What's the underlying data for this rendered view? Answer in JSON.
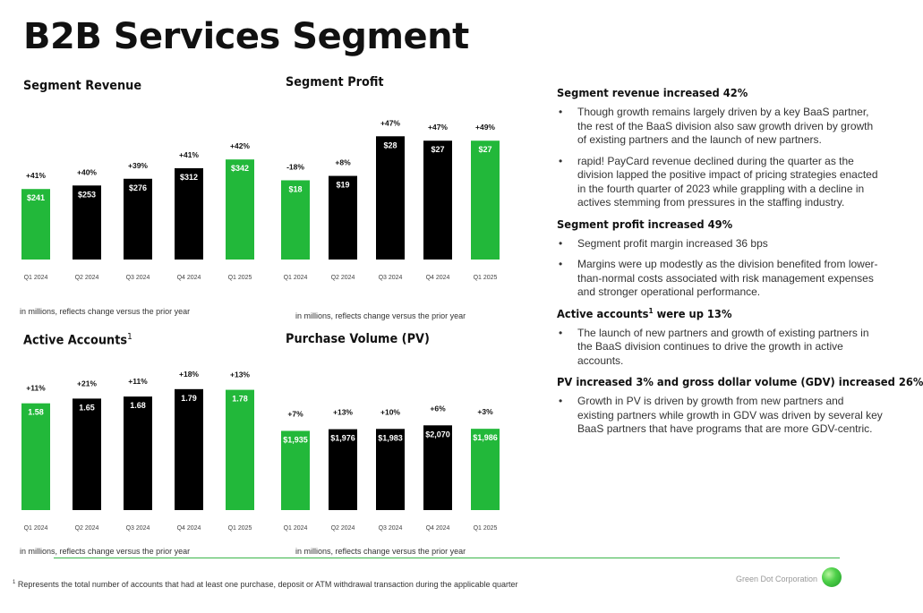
{
  "page": {
    "title": "B2B Services Segment",
    "accent_color": "#22b83a",
    "dark_color": "#000000"
  },
  "chart_data": [
    {
      "type": "bar",
      "title": "Segment Revenue",
      "categories": [
        "Q1 2024",
        "Q2 2024",
        "Q3 2024",
        "Q4 2024",
        "Q1 2025"
      ],
      "values": [
        241,
        253,
        276,
        312,
        342
      ],
      "value_labels": [
        "$241",
        "$253",
        "$276",
        "$312",
        "$342"
      ],
      "change_labels": [
        "+41%",
        "+40%",
        "+39%",
        "+41%",
        "+42%"
      ],
      "bar_colors": [
        "#22b83a",
        "#000000",
        "#000000",
        "#000000",
        "#22b83a"
      ],
      "ylim": [
        0,
        520
      ],
      "note": "in millions, reflects change versus the prior year"
    },
    {
      "type": "bar",
      "title": "Segment Profit",
      "categories": [
        "Q1 2024",
        "Q2 2024",
        "Q3 2024",
        "Q4 2024",
        "Q1 2025"
      ],
      "values": [
        18,
        19,
        28,
        27,
        27
      ],
      "value_labels": [
        "$18",
        "$19",
        "$28",
        "$27",
        "$27"
      ],
      "change_labels": [
        "-18%",
        "+8%",
        "+47%",
        "+47%",
        "+49%"
      ],
      "bar_colors": [
        "#22b83a",
        "#000000",
        "#000000",
        "#000000",
        "#22b83a"
      ],
      "ylim": [
        0,
        30.5
      ],
      "note": "in millions, reflects change versus the prior year"
    },
    {
      "type": "bar",
      "title": "Active Accounts",
      "title_sup": "1",
      "categories": [
        "Q1 2024",
        "Q2 2024",
        "Q3 2024",
        "Q4 2024",
        "Q1 2025"
      ],
      "values": [
        1.58,
        1.65,
        1.68,
        1.79,
        1.78
      ],
      "value_labels": [
        "1.58",
        "1.65",
        "1.68",
        "1.79",
        "1.78"
      ],
      "change_labels": [
        "+11%",
        "+21%",
        "+11%",
        "+18%",
        "+13%"
      ],
      "bar_colors": [
        "#22b83a",
        "#000000",
        "#000000",
        "#000000",
        "#22b83a"
      ],
      "ylim": [
        0,
        1.96
      ],
      "note": "in millions, reflects change versus the prior year"
    },
    {
      "type": "bar",
      "title": "Purchase Volume (PV)",
      "categories": [
        "Q1 2024",
        "Q2 2024",
        "Q3 2024",
        "Q4 2024",
        "Q1 2025"
      ],
      "values": [
        1935,
        1976,
        1983,
        2070,
        1986
      ],
      "value_labels": [
        "$1,935",
        "$1,976",
        "$1,983",
        "$2,070",
        "$1,986"
      ],
      "change_labels": [
        "+7%",
        "+13%",
        "+10%",
        "+6%",
        "+3%"
      ],
      "bar_colors": [
        "#22b83a",
        "#000000",
        "#000000",
        "#000000",
        "#22b83a"
      ],
      "ylim": [
        0,
        2820
      ],
      "note": "in millions, reflects change versus the prior year"
    }
  ],
  "commentary": [
    {
      "heading": "Segment revenue increased 42%",
      "bullets": [
        "Though growth remains largely driven by a key BaaS partner, the rest of the BaaS division also saw growth driven by growth of existing partners and the launch of new partners.",
        "rapid! PayCard revenue declined during the quarter as the division lapped the positive impact of pricing strategies enacted in the fourth quarter of 2023 while grappling with a decline in actives stemming from pressures in the staffing industry."
      ]
    },
    {
      "heading": "Segment profit increased 49%",
      "bullets": [
        "Segment profit margin increased 36 bps",
        "Margins were up modestly as the division benefited from lower-than-normal costs associated with risk management expenses and stronger operational performance."
      ]
    },
    {
      "heading_pre": "Active accounts",
      "heading_sup": "1",
      "heading_post": " were up 13%",
      "bullets": [
        "The launch of new partners and growth of existing partners in the BaaS division continues to drive the growth in active accounts."
      ]
    },
    {
      "heading": "PV increased 3% and gross dollar volume (GDV) increased 26%",
      "bullets": [
        "Growth in PV is driven by growth from new partners and existing partners while growth in GDV was driven by several key BaaS partners that have programs that are more GDV-centric."
      ]
    }
  ],
  "bullet_symbol": "•",
  "footer": {
    "footnote_sup": "1",
    "footnote": " Represents the total number of accounts that had at least one purchase, deposit or ATM withdrawal transaction during the applicable quarter",
    "brand": "Green Dot Corporation"
  }
}
